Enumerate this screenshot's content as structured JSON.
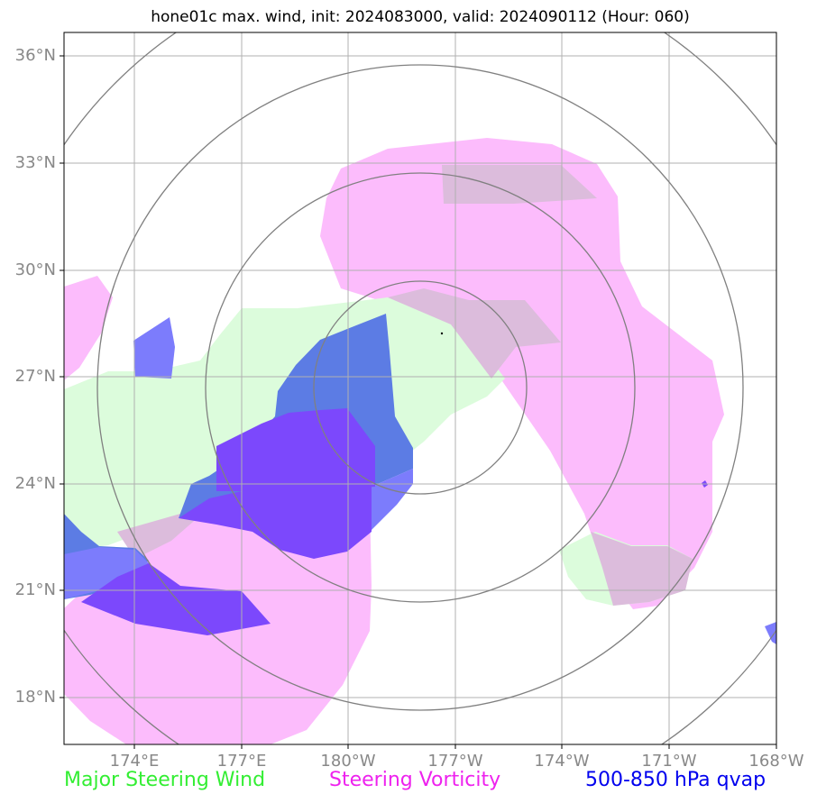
{
  "title": "hone01c max. wind, init: 2024083000, valid: 2024090112 (Hour: 060)",
  "legend": {
    "major_steering_wind": {
      "label": "Major Steering Wind",
      "color": "#33ee33"
    },
    "steering_vorticity": {
      "label": "Steering Vorticity",
      "color": "#ee22ee"
    },
    "qvap": {
      "label": "500-850 hPa qvap",
      "color": "#0000ee"
    }
  },
  "axes": {
    "lat_labels": [
      "36°N",
      "33°N",
      "30°N",
      "27°N",
      "24°N",
      "21°N",
      "18°N"
    ],
    "lon_labels": [
      "174°E",
      "177°E",
      "180°W",
      "177°W",
      "174°W",
      "171°W",
      "168°W"
    ]
  },
  "colors": {
    "wind_fill": "#dcfcdc",
    "vorticity_fill": "#fcbcfc",
    "vort_wind_overlap": "#dcbcdc",
    "qvap_strong": "#7c48fc",
    "qvap_blue": "#5c7ce4",
    "qvap_light": "#7c7cfc",
    "grid": "#b0b0b0",
    "range_rings": "#808080"
  }
}
